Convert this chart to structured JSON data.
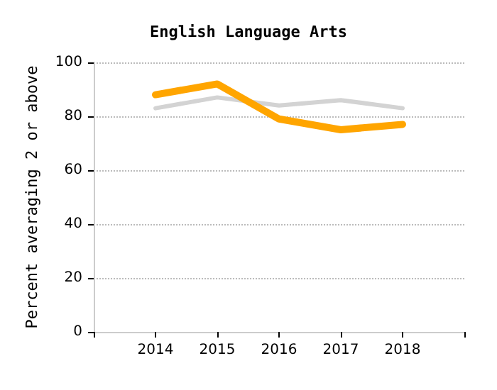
{
  "chart_data": {
    "type": "line",
    "title": "English Language Arts",
    "ylabel": "Percent averaging 2 or above",
    "x": [
      2014,
      2015,
      2016,
      2017,
      2018
    ],
    "series": [
      {
        "color": "#d3d3d3",
        "values": [
          83,
          87,
          84,
          86,
          83
        ]
      },
      {
        "color": "#ffa500",
        "values": [
          88,
          92,
          79,
          75,
          77
        ]
      }
    ],
    "xlim": [
      2013,
      2019
    ],
    "xticks": [
      {
        "value": 2013,
        "label": null
      },
      2014,
      2015,
      2016,
      2017,
      2018,
      {
        "value": 2019,
        "label": null
      }
    ],
    "ylim": [
      0,
      100
    ],
    "yticks": [
      0,
      20,
      40,
      60,
      80,
      100
    ],
    "grid": "y",
    "marker": "none",
    "line_style": "solid"
  }
}
